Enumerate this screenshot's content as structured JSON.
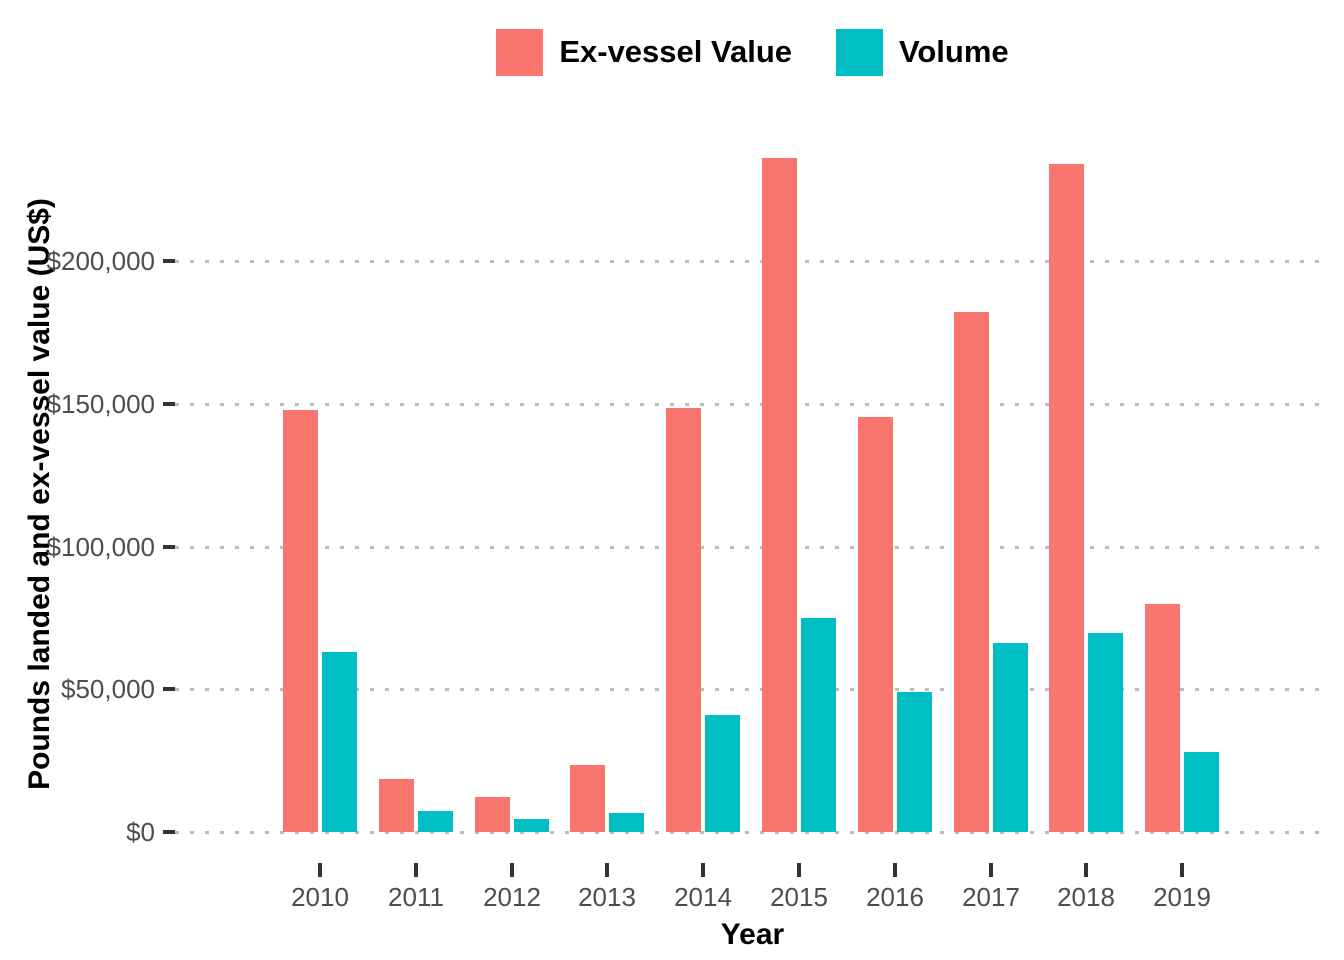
{
  "chart_data": {
    "type": "bar",
    "title": "",
    "xlabel": "Year",
    "ylabel": "Pounds landed and ex-vessel value (US$)",
    "categories": [
      "2010",
      "2011",
      "2012",
      "2013",
      "2014",
      "2015",
      "2016",
      "2017",
      "2018",
      "2019"
    ],
    "series": [
      {
        "name": "Ex-vessel Value",
        "color": "#F8766D",
        "values": [
          148000,
          18600,
          12300,
          23600,
          148400,
          236200,
          145300,
          182200,
          234100,
          79900
        ]
      },
      {
        "name": "Volume",
        "color": "#00BFC4",
        "values": [
          63000,
          7300,
          4700,
          6700,
          41000,
          74900,
          49100,
          66200,
          69800,
          27900
        ]
      }
    ],
    "y_ticks": [
      {
        "value": 0,
        "label": "$0"
      },
      {
        "value": 50000,
        "label": "$50,000"
      },
      {
        "value": 100000,
        "label": "$100,000"
      },
      {
        "value": 150000,
        "label": "$150,000"
      },
      {
        "value": 200000,
        "label": "$200,000"
      }
    ],
    "ylim": [
      0,
      248000
    ],
    "grid": "horizontal-dotted",
    "legend_position": "top-center",
    "colors": {
      "background": "#ffffff",
      "gridline": "#bdbdbd",
      "tick_text": "#4d4d4d",
      "axis_tick": "#333333",
      "axis_title_text": "#000000"
    }
  }
}
